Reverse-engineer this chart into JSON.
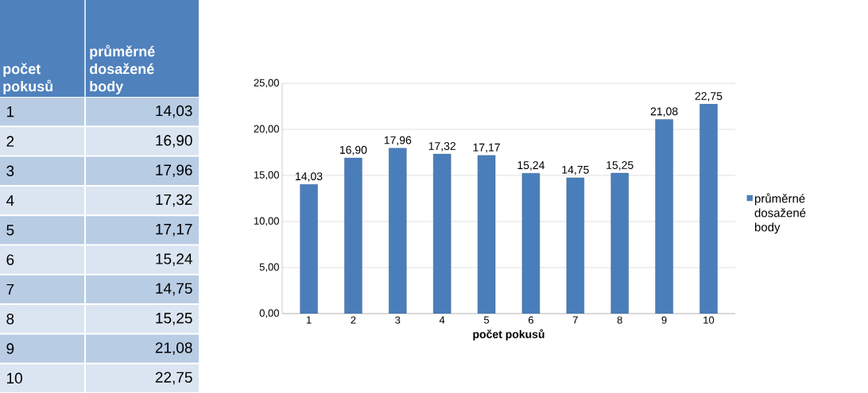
{
  "chart_data": {
    "type": "bar",
    "xlabel": "počet pokusů",
    "categories": [
      "1",
      "2",
      "3",
      "4",
      "5",
      "6",
      "7",
      "8",
      "9",
      "10"
    ],
    "series": [
      {
        "name": "průměrné dosažené body",
        "color": "#4a7ebb",
        "values": [
          14.03,
          16.9,
          17.96,
          17.32,
          17.17,
          15.24,
          14.75,
          15.25,
          21.08,
          22.75
        ],
        "value_labels": [
          "14,03",
          "16,90",
          "17,96",
          "17,32",
          "17,17",
          "15,24",
          "14,75",
          "15,25",
          "21,08",
          "22,75"
        ]
      }
    ],
    "ylim": [
      0,
      25
    ],
    "yticks": [
      {
        "value": 0,
        "label": "0,00"
      },
      {
        "value": 5,
        "label": "5,00"
      },
      {
        "value": 10,
        "label": "10,00"
      },
      {
        "value": 15,
        "label": "15,00"
      },
      {
        "value": 20,
        "label": "20,00"
      },
      {
        "value": 25,
        "label": "25,00"
      }
    ],
    "grid": "y",
    "legend": "right"
  }
}
